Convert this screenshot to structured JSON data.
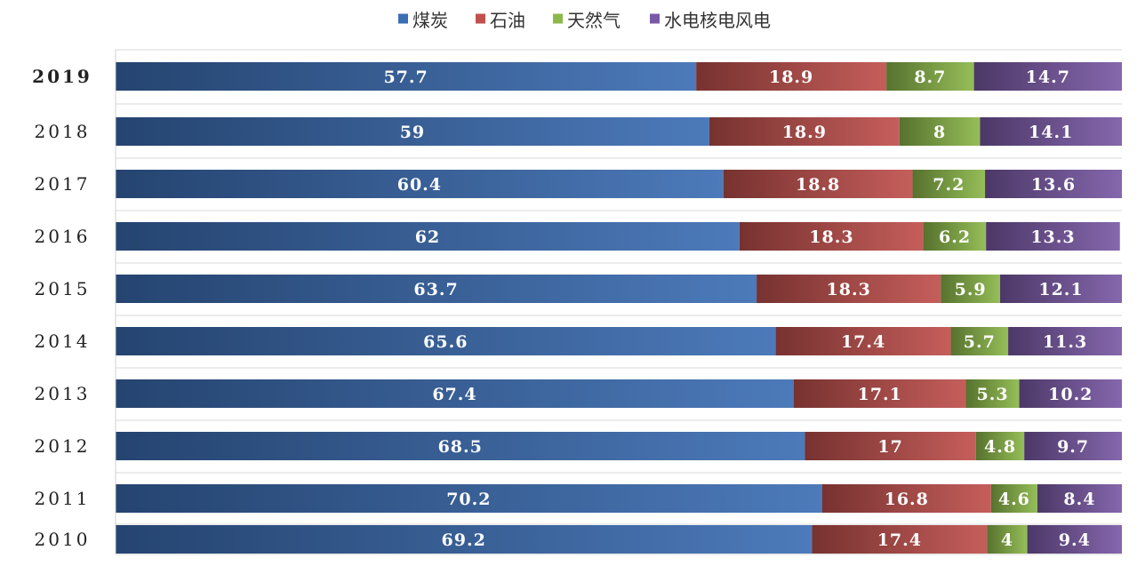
{
  "chart_data": {
    "type": "bar",
    "orientation": "horizontal",
    "stacked": true,
    "categories": [
      "2019",
      "2018",
      "2017",
      "2016",
      "2015",
      "2014",
      "2013",
      "2012",
      "2011",
      "2010"
    ],
    "series": [
      {
        "name": "煤炭",
        "color": "#3C6EB4",
        "values": [
          57.7,
          59,
          60.4,
          62,
          63.7,
          65.6,
          67.4,
          68.5,
          70.2,
          69.2
        ]
      },
      {
        "name": "石油",
        "color": "#C0504D",
        "values": [
          18.9,
          18.9,
          18.8,
          18.3,
          18.3,
          17.4,
          17.1,
          17,
          16.8,
          17.4
        ]
      },
      {
        "name": "天然气",
        "color": "#8CB84A",
        "values": [
          8.7,
          8,
          7.2,
          6.2,
          5.9,
          5.7,
          5.3,
          4.8,
          4.6,
          4
        ]
      },
      {
        "name": "水电核电风电",
        "color": "#7A5AA6",
        "values": [
          14.7,
          14.1,
          13.6,
          13.3,
          12.1,
          11.3,
          10.2,
          9.7,
          8.4,
          9.4
        ]
      }
    ],
    "value_labels": [
      [
        "57.7",
        "18.9",
        "8.7",
        "14.7"
      ],
      [
        "59",
        "18.9",
        "8",
        "14.1"
      ],
      [
        "60.4",
        "18.8",
        "7.2",
        "13.6"
      ],
      [
        "62",
        "18.3",
        "6.2",
        "13.3"
      ],
      [
        "63.7",
        "18.3",
        "5.9",
        "12.1"
      ],
      [
        "65.6",
        "17.4",
        "5.7",
        "11.3"
      ],
      [
        "67.4",
        "17.1",
        "5.3",
        "10.2"
      ],
      [
        "68.5",
        "17",
        "4.8",
        "9.7"
      ],
      [
        "70.2",
        "16.8",
        "4.6",
        "8.4"
      ],
      [
        "69.2",
        "17.4",
        "4",
        "9.4"
      ]
    ],
    "legend_position": "top-center",
    "grid": true,
    "xlim": [
      0,
      100
    ],
    "title": "",
    "xlabel": "",
    "ylabel": ""
  }
}
